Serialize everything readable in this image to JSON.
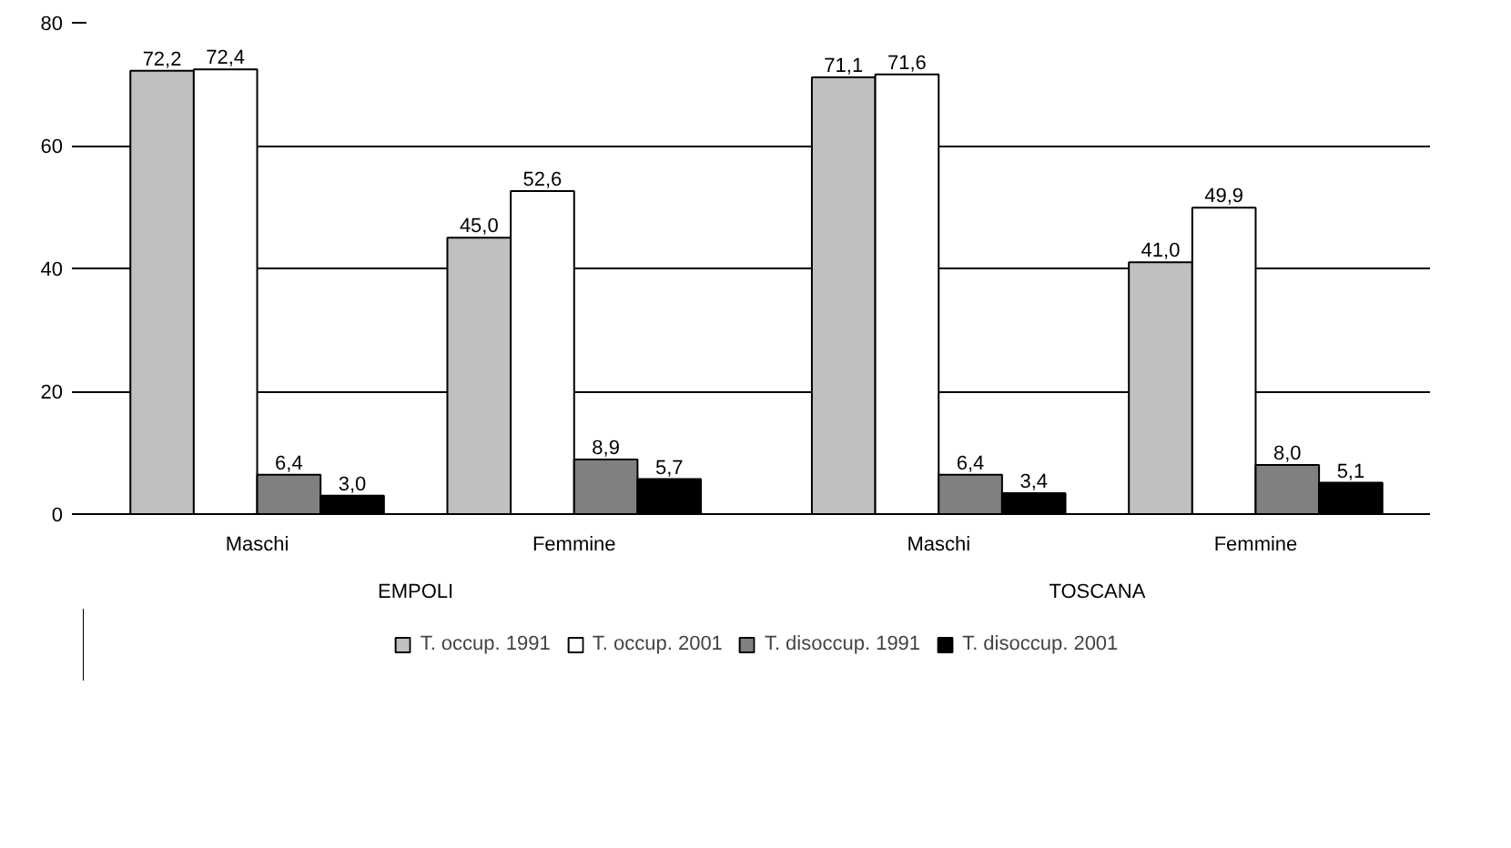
{
  "chart_data": {
    "type": "bar",
    "categories": [
      "Maschi",
      "Femmine",
      "Maschi",
      "Femmine"
    ],
    "annotations": [
      "EMPOLI",
      "TOSCANA"
    ],
    "series": [
      {
        "name": "T. occup. 1991",
        "color": "#c0c0c0",
        "values": [
          72.2,
          45.0,
          71.1,
          41.0
        ],
        "value_labels": [
          "72,2",
          "45,0",
          "71,1",
          "41,0"
        ]
      },
      {
        "name": "T. occup. 2001",
        "color": "#ffffff",
        "values": [
          72.4,
          52.6,
          71.6,
          49.9
        ],
        "value_labels": [
          "72,4",
          "52,6",
          "71,6",
          "49,9"
        ]
      },
      {
        "name": "T. disoccup. 1991",
        "color": "#808080",
        "values": [
          6.4,
          8.9,
          6.4,
          8.0
        ],
        "value_labels": [
          "6,4",
          "8,9",
          "6,4",
          "8,0"
        ]
      },
      {
        "name": "T. disoccup. 2001",
        "color": "#000000",
        "values": [
          3.0,
          5.7,
          3.4,
          5.1
        ],
        "value_labels": [
          "3,0",
          "5,7",
          "3,4",
          "5,1"
        ]
      }
    ],
    "ylim": [
      0,
      80
    ],
    "yticks": [
      0,
      20,
      40,
      60,
      80
    ],
    "grid": "y",
    "legend": "bottom"
  }
}
